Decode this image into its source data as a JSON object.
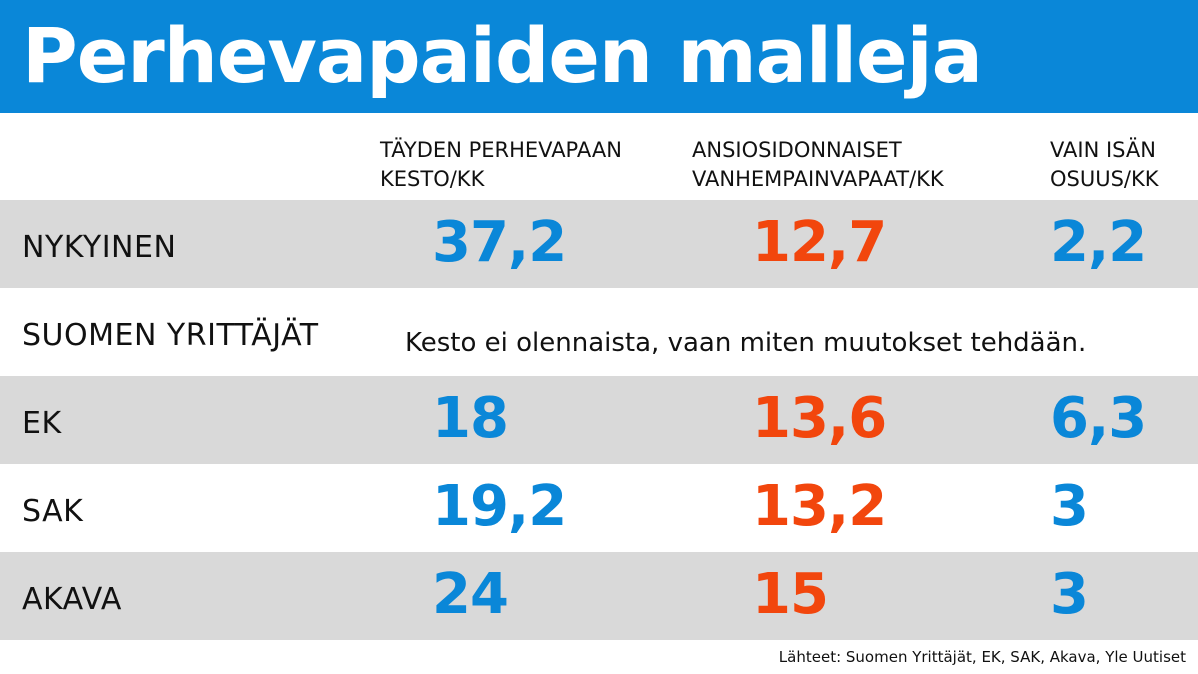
{
  "title": "Perhevapaiden malleja",
  "colors": {
    "title_bar": "#0a87d8",
    "blue_value": "#0a87d8",
    "red_value": "#f2460d",
    "row_shade": "#d9d9d9"
  },
  "chart_data": {
    "type": "table",
    "title": "Perhevapaiden malleja",
    "columns": [
      "TÄYDEN PERHEVAPAAN\nKESTO/KK",
      "ANSIOSIDONNAISET\nVANHEMPAINVAPAAT/KK",
      "VAIN ISÄN\nOSUUS/KK"
    ],
    "rows": [
      {
        "label": "NYKYINEN",
        "values": [
          "37,2",
          "12,7",
          "2,2"
        ],
        "shaded": true
      },
      {
        "label": "SUOMEN YRITTÄJÄT",
        "note": "Kesto ei olennaista, vaan miten muutokset tehdään.",
        "values": [],
        "shaded": false
      },
      {
        "label": "EK",
        "values": [
          "18",
          "13,6",
          "6,3"
        ],
        "shaded": true
      },
      {
        "label": "SAK",
        "values": [
          "19,2",
          "13,2",
          "3"
        ],
        "shaded": false
      },
      {
        "label": "AKAVA",
        "values": [
          "24",
          "15",
          "3"
        ],
        "shaded": true
      }
    ],
    "value_colors": [
      "#0a87d8",
      "#f2460d",
      "#0a87d8"
    ]
  },
  "source": "Lähteet: Suomen Yrittäjät, EK, SAK, Akava, Yle Uutiset"
}
